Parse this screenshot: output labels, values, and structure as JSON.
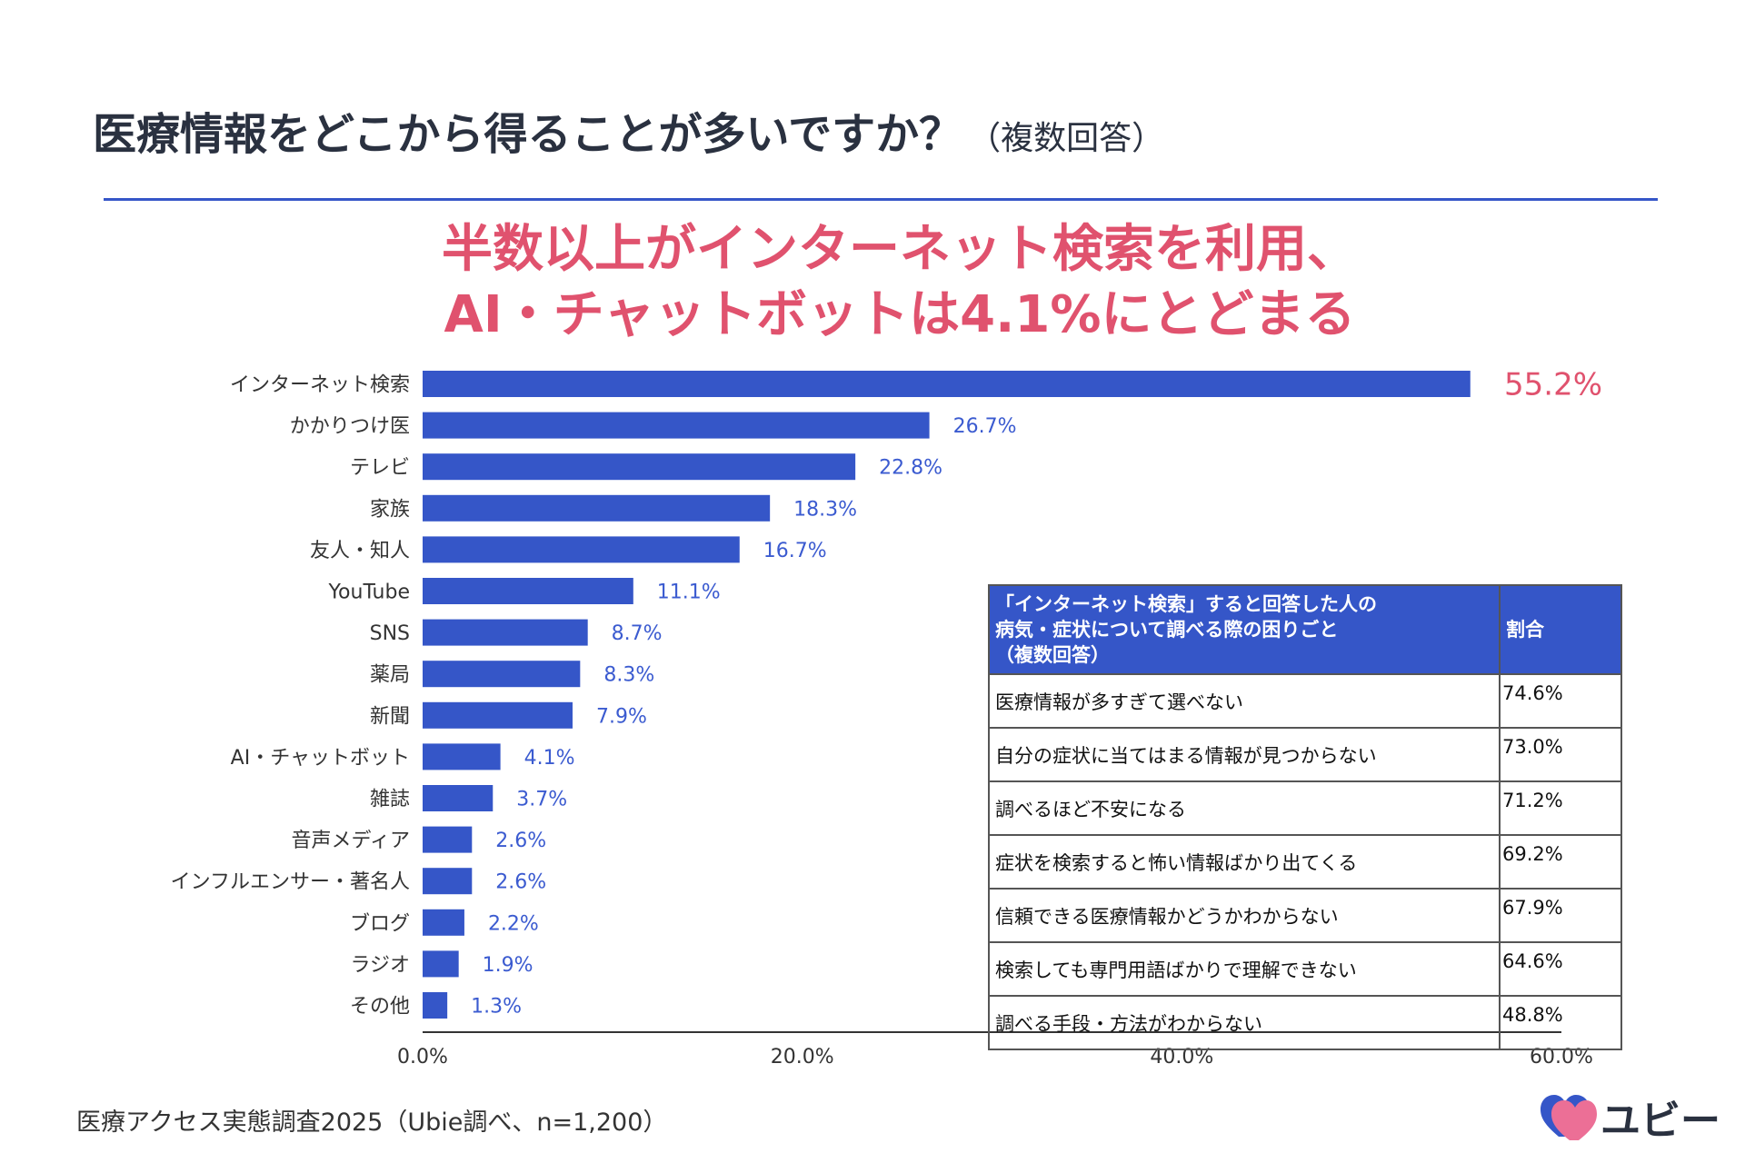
{
  "page": {
    "title": "医療情報をどこから得ることが多いですか？",
    "title_sub": "（複数回答）",
    "headline_line1": "半数以上がインターネット検索を利用、",
    "headline_line2": "AI・チャットボットは4.1%にとどまる",
    "source": "医療アクセス実態調査2025（Ubie調べ、n=1,200）",
    "logo_text": "ユビー"
  },
  "colors": {
    "bar": "#3556c8",
    "value_label": "#3b5bd0",
    "highlight": "#e0526e",
    "rule": "#3556c8"
  },
  "chart_data": {
    "type": "bar",
    "orientation": "horizontal",
    "categories": [
      "インターネット検索",
      "かかりつけ医",
      "テレビ",
      "家族",
      "友人・知人",
      "YouTube",
      "SNS",
      "薬局",
      "新聞",
      "AI・チャットボット",
      "雑誌",
      "音声メディア",
      "インフルエンサー・著名人",
      "ブログ",
      "ラジオ",
      "その他"
    ],
    "values": [
      55.2,
      26.7,
      22.8,
      18.3,
      16.7,
      11.1,
      8.7,
      8.3,
      7.9,
      4.1,
      3.7,
      2.6,
      2.6,
      2.2,
      1.9,
      1.3
    ],
    "value_labels": [
      "55.2%",
      "26.7%",
      "22.8%",
      "18.3%",
      "16.7%",
      "11.1%",
      "8.7%",
      "8.3%",
      "7.9%",
      "4.1%",
      "3.7%",
      "2.6%",
      "2.6%",
      "2.2%",
      "1.9%",
      "1.3%"
    ],
    "highlight_index": 0,
    "xlim": [
      0,
      60
    ],
    "x_ticks": [
      0,
      20,
      40,
      60
    ],
    "x_tick_labels": [
      "0.0%",
      "20.0%",
      "40.0%",
      "60.0%"
    ],
    "grid": false
  },
  "inset_table": {
    "header": [
      "「インターネット検索」すると回答した人の",
      "病気・症状について調べる際の困りごと",
      "（複数回答）"
    ],
    "header_col2": "割合",
    "rows": [
      {
        "label": "医療情報が多すぎて選べない",
        "value": "74.6%"
      },
      {
        "label": "自分の症状に当てはまる情報が見つからない",
        "value": "73.0%"
      },
      {
        "label": "調べるほど不安になる",
        "value": "71.2%"
      },
      {
        "label": "症状を検索すると怖い情報ばかり出てくる",
        "value": "69.2%"
      },
      {
        "label": "信頼できる医療情報かどうかわからない",
        "value": "67.9%"
      },
      {
        "label": "検索しても専門用語ばかりで理解できない",
        "value": "64.6%"
      },
      {
        "label": "調べる手段・方法がわからない",
        "value": "48.8%"
      }
    ]
  }
}
